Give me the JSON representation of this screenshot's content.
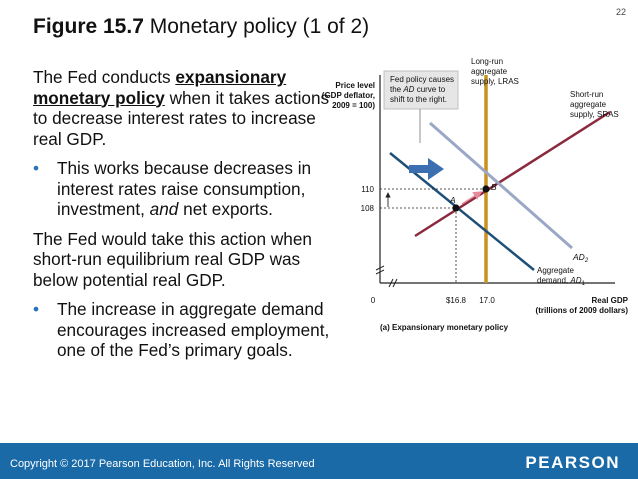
{
  "page_number": "22",
  "title": {
    "figure": "Figure 15.7",
    "text": " Monetary policy (1 of 2)"
  },
  "body": {
    "p1_a": "The Fed conducts ",
    "p1_em": "expansionary monetary policy",
    "p1_b": " when it takes actions to decrease interest rates to increase real GDP.",
    "b1_a": "This works because decreases in interest rates raise consumption, investment, ",
    "b1_em": "and",
    "b1_b": " net exports.",
    "p2": "The Fed would take this action when short-run equilibrium real GDP was below potential real GDP.",
    "b2": "The increase in aggregate demand encourages increased employment, one of the Fed’s primary goals."
  },
  "diagram": {
    "y_axis_label_1": "Price level",
    "y_axis_label_2": "(GDP deflator,",
    "y_axis_label_3": "2009 = 100)",
    "x_axis_label_1": "Real GDP",
    "x_axis_label_2": "(trillions of 2009 dollars)",
    "origin": "0",
    "x_tick_1": "$16.8",
    "x_tick_2": "17.0",
    "y_tick_1": "110",
    "y_tick_2": "108",
    "callout_1": "Fed policy causes",
    "callout_2": "the AD curve to",
    "callout_3": "shift to the right.",
    "lras_1": "Long-run",
    "lras_2": "aggregate",
    "lras_3": "supply, LRAS",
    "sras_1": "Short-run",
    "sras_2": "aggregate",
    "sras_3": "supply, SRAS",
    "ad2_label": "AD",
    "ad2_sub": "2",
    "ad1_1": "Aggregate",
    "ad1_2": "demand, AD",
    "ad1_sub": "1",
    "point_a": "A",
    "point_b": "B",
    "caption": "(a) Expansionary monetary policy",
    "colors": {
      "lras": "#c8921e",
      "sras": "#8b2a3e",
      "ad1": "#1e4f78",
      "ad2": "#9aa8c6",
      "shift_arrow": "#3b6fb2"
    }
  },
  "footer": {
    "copyright": "Copyright © 2017 Pearson Education, Inc. All Rights Reserved",
    "brand": "PEARSON"
  }
}
